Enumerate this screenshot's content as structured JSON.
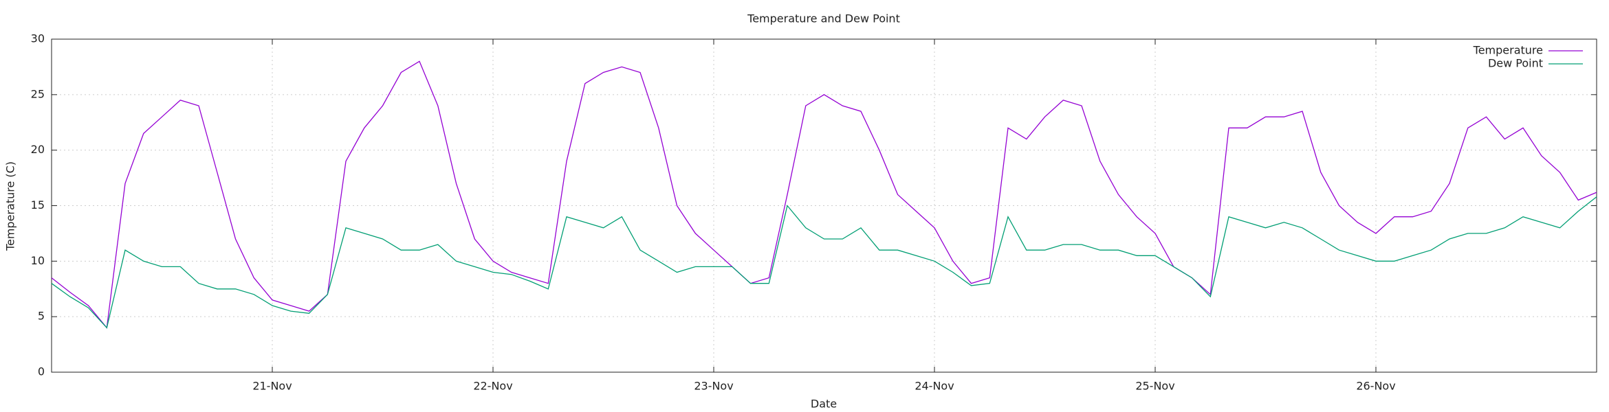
{
  "chart_data": {
    "type": "line",
    "title": "Temperature and Dew Point",
    "xlabel": "Date",
    "ylabel": "Temperature (C)",
    "x": [
      0,
      2,
      4,
      6,
      8,
      10,
      12,
      14,
      16,
      18,
      20,
      22,
      24,
      26,
      28,
      30,
      32,
      34,
      36,
      38,
      40,
      42,
      44,
      46,
      48,
      50,
      52,
      54,
      56,
      58,
      60,
      62,
      64,
      66,
      68,
      70,
      72,
      74,
      76,
      78,
      80,
      82,
      84,
      86,
      88,
      90,
      92,
      94,
      96,
      98,
      100,
      102,
      104,
      106,
      108,
      110,
      112,
      114,
      116,
      118,
      120,
      122,
      124,
      126,
      128,
      130,
      132,
      134,
      136,
      138,
      140,
      142,
      144,
      146,
      148,
      150,
      152,
      154,
      156,
      158,
      160,
      162,
      164,
      166,
      168
    ],
    "series": [
      {
        "name": "Temperature",
        "color": "#9400d3",
        "values": [
          8.5,
          7.2,
          6,
          4,
          17,
          21.5,
          23,
          24.5,
          24,
          18,
          12,
          8.5,
          6.5,
          6,
          5.5,
          7,
          19,
          22,
          24,
          27,
          28,
          24,
          17,
          12,
          10,
          9,
          8.5,
          8,
          19,
          26,
          27,
          27.5,
          27,
          22,
          15,
          12.5,
          11,
          9.5,
          8,
          8.5,
          16,
          24,
          25,
          24,
          23.5,
          20,
          16,
          14.5,
          13,
          10,
          8,
          8.5,
          22,
          21,
          23,
          24.5,
          24,
          19,
          16,
          14,
          12.5,
          9.5,
          8.5,
          7,
          22,
          22,
          23,
          23,
          23.5,
          18,
          15,
          13.5,
          12.5,
          14,
          14,
          14.5,
          17,
          22,
          23,
          21,
          22,
          19.5,
          18,
          15.5,
          16.2
        ]
      },
      {
        "name": "Dew Point",
        "color": "#009e73",
        "values": [
          8,
          6.8,
          5.8,
          4,
          11,
          10,
          9.5,
          9.5,
          8,
          7.5,
          7.5,
          7,
          6,
          5.5,
          5.3,
          7,
          13,
          12.5,
          12,
          11,
          11,
          11.5,
          10,
          9.5,
          9,
          8.8,
          8.2,
          7.5,
          14,
          13.5,
          13,
          14,
          11,
          10,
          9,
          9.5,
          9.5,
          9.5,
          8,
          8,
          15,
          13,
          12,
          12,
          13,
          11,
          11,
          10.5,
          10,
          9,
          7.8,
          8,
          14,
          11,
          11,
          11.5,
          11.5,
          11,
          11,
          10.5,
          10.5,
          9.5,
          8.5,
          6.8,
          14,
          13.5,
          13,
          13.5,
          13,
          12,
          11,
          10.5,
          10,
          10,
          10.5,
          11,
          12,
          12.5,
          12.5,
          13,
          14,
          13.5,
          13,
          14.5,
          15.8
        ]
      }
    ],
    "xlim": [
      0,
      168
    ],
    "xticks": [
      {
        "value": 24,
        "label": "21-Nov"
      },
      {
        "value": 48,
        "label": "22-Nov"
      },
      {
        "value": 72,
        "label": "23-Nov"
      },
      {
        "value": 96,
        "label": "24-Nov"
      },
      {
        "value": 120,
        "label": "25-Nov"
      },
      {
        "value": 144,
        "label": "26-Nov"
      }
    ],
    "ylim": [
      0,
      30
    ],
    "yticks": [
      0,
      5,
      10,
      15,
      20,
      25,
      30
    ],
    "grid": true,
    "legend": "top-right"
  }
}
